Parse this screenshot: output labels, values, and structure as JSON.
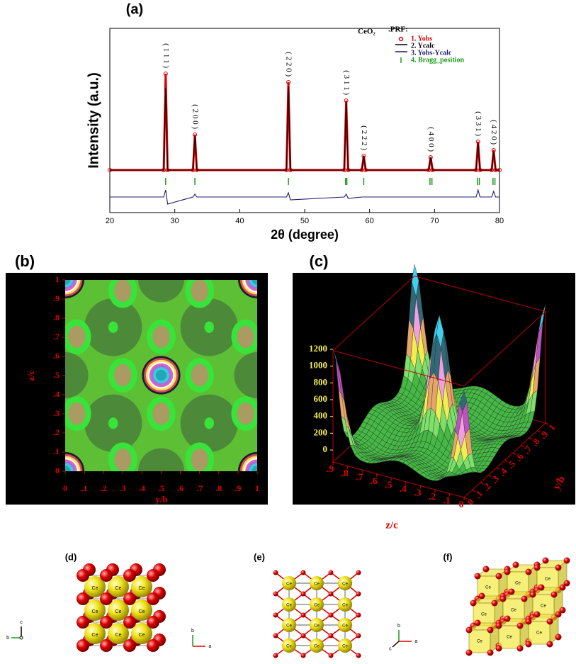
{
  "chart_data": [
    {
      "type": "line",
      "label": "(a)",
      "xlabel": "2θ (degree)",
      "ylabel": "Intensity (a.u.)",
      "xlim": [
        20,
        80
      ],
      "xticks": [
        20,
        30,
        40,
        50,
        60,
        70,
        80
      ],
      "ylim": [
        -30,
        100
      ],
      "x": [
        20,
        28.3,
        28.6,
        28.9,
        32.8,
        33.1,
        33.4,
        47.2,
        47.5,
        47.8,
        56.1,
        56.4,
        56.7,
        58.8,
        59.1,
        59.4,
        69.1,
        69.4,
        69.7,
        76.4,
        76.7,
        77.0,
        78.8,
        79.1,
        79.4,
        80
      ],
      "series": [
        {
          "name": "1. Yobs",
          "color": "#e00000",
          "marker": "circle",
          "values": [
            0,
            0,
            68,
            0,
            0,
            25,
            0,
            0,
            62,
            0,
            0,
            49,
            0,
            0,
            10,
            0,
            0,
            9,
            0,
            0,
            20,
            0,
            0,
            14,
            0,
            0
          ]
        },
        {
          "name": "2. Ycalc",
          "color": "#000000",
          "values": [
            0,
            0,
            58,
            0,
            0,
            24,
            0,
            0,
            59,
            0,
            0,
            48,
            0,
            0,
            10,
            0,
            0,
            9,
            0,
            0,
            19,
            0,
            0,
            13,
            0,
            0
          ]
        },
        {
          "name": "3. Yobs-Ycalc",
          "color": "#1c1c6e",
          "values": [
            -19,
            -19,
            -14,
            -24,
            -19,
            -17,
            -19,
            -19,
            -16,
            -21,
            -19,
            -17,
            -20,
            -19,
            -19,
            -19,
            -19,
            -19,
            -19,
            -19,
            -14,
            -19,
            -19,
            -15,
            -19,
            -19
          ]
        },
        {
          "name": "4. Bragg_position",
          "color": "#1a9a1a",
          "marker": "tick",
          "x": [
            28.6,
            33.1,
            47.5,
            56.3,
            56.5,
            59.1,
            69.3,
            69.6,
            76.6,
            76.9,
            79.0,
            79.3
          ],
          "values": [
            -8,
            -8,
            -8,
            -8,
            -8,
            -8,
            -8,
            -8,
            -8,
            -8,
            -8,
            -8
          ]
        }
      ],
      "legend_title": [
        "CeO₂",
        ".PRF:"
      ],
      "annotations": [
        {
          "text": "( 1 1 1 )",
          "x": 28.6
        },
        {
          "text": "( 2 0 0 )",
          "x": 33.1
        },
        {
          "text": "( 2 2 0 )",
          "x": 47.5
        },
        {
          "text": "( 3 1 1 )",
          "x": 56.4
        },
        {
          "text": "( 2 2 2 )",
          "x": 59.1
        },
        {
          "text": "( 4 0 0 )",
          "x": 69.4
        },
        {
          "text": "( 3 3 1 )",
          "x": 76.7
        },
        {
          "text": "( 4 2 0 )",
          "x": 79.1
        }
      ]
    },
    {
      "type": "contour",
      "label": "(b)",
      "xlabel": "y/b",
      "ylabel": "z/c",
      "xlim": [
        0,
        1
      ],
      "ylim": [
        0,
        1
      ],
      "xticks": [
        0,
        {
          "value": 0.1,
          "label": ".1"
        },
        {
          "value": 0.2,
          "label": ".2"
        },
        {
          "value": 0.3,
          "label": ".3"
        },
        {
          "value": 0.4,
          "label": ".4"
        },
        {
          "value": 0.5,
          "label": ".5"
        },
        {
          "value": 0.6,
          "label": ".6"
        },
        {
          "value": 0.7,
          "label": ".7"
        },
        {
          "value": 0.8,
          "label": ".8"
        },
        {
          "value": 0.9,
          "label": ".9"
        },
        1
      ],
      "yticks": [
        0,
        {
          "value": 0.1,
          "label": ".1"
        },
        {
          "value": 0.2,
          "label": ".2"
        },
        {
          "value": 0.3,
          "label": ".3"
        },
        {
          "value": 0.4,
          "label": ".4"
        },
        {
          "value": 0.5,
          "label": ".5"
        },
        {
          "value": 0.6,
          "label": ".6"
        },
        {
          "value": 0.7,
          "label": ".7"
        },
        {
          "value": 0.8,
          "label": ".8"
        },
        {
          "value": 0.9,
          "label": ".9"
        },
        1
      ]
    },
    {
      "type": "surface",
      "label": "(c)",
      "xlabel": "z/c",
      "ylabel": "y/b",
      "xlim": [
        0,
        0.9
      ],
      "ylim": [
        0,
        1
      ],
      "zlim": [
        0,
        1200
      ],
      "xticks": [
        {
          "value": 0.9,
          "label": ".9"
        },
        {
          "value": 0.8,
          "label": ".8"
        },
        {
          "value": 0.7,
          "label": ".7"
        },
        {
          "value": 0.6,
          "label": ".6"
        },
        {
          "value": 0.5,
          "label": ".5"
        },
        {
          "value": 0.4,
          "label": ".4"
        },
        {
          "value": 0.3,
          "label": ".3"
        },
        {
          "value": 0.2,
          "label": ".2"
        },
        {
          "value": 0.1,
          "label": ".1"
        },
        0
      ],
      "yticks": [
        0,
        {
          "value": 0.1,
          "label": ".1"
        },
        {
          "value": 0.2,
          "label": ".2"
        },
        {
          "value": 0.3,
          "label": ".3"
        },
        {
          "value": 0.4,
          "label": ".4"
        },
        {
          "value": 0.5,
          "label": ".5"
        },
        {
          "value": 0.6,
          "label": ".6"
        },
        {
          "value": 0.7,
          "label": ".7"
        },
        {
          "value": 0.8,
          "label": ".8"
        },
        {
          "value": 0.9,
          "label": ".9"
        },
        1
      ],
      "zticks": [
        0,
        200,
        400,
        600,
        800,
        1000,
        1200
      ]
    }
  ],
  "structures": {
    "panels": [
      "(d)",
      "(e)",
      "(f)"
    ],
    "atom_label": "Ce",
    "axis_labels": [
      "a",
      "b",
      "c"
    ]
  }
}
